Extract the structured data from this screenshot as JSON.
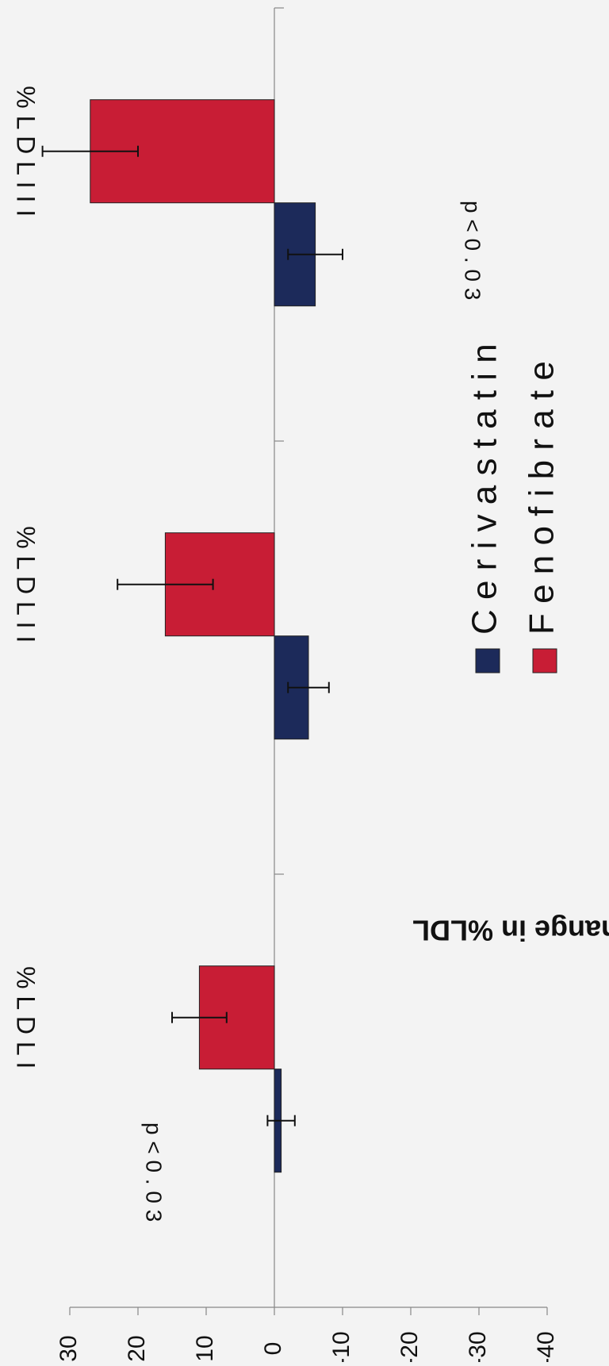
{
  "chart_data": {
    "type": "bar",
    "orientation": "rotated-90-clockwise",
    "ylabel": "Absolute Change in %LDL",
    "ylim": [
      -40,
      30
    ],
    "y_ticks": [
      "30",
      "20",
      "10",
      "0",
      "-10",
      "-20",
      "-30",
      "-40"
    ],
    "y_tick_values": [
      30,
      20,
      10,
      0,
      -10,
      -20,
      -30,
      -40
    ],
    "categories": [
      "% L D L I",
      "% L D L I I",
      "% L D L I I I"
    ],
    "series": [
      {
        "name": "C e r i v a s t a t i n",
        "color": "#1c2a5a",
        "values": [
          -1,
          -5,
          -6
        ],
        "errors": [
          2,
          3,
          4
        ]
      },
      {
        "name": "F e n o f i b r a t e",
        "color": "#c81d35",
        "values": [
          11,
          16,
          27
        ],
        "errors": [
          4,
          7,
          7
        ]
      }
    ],
    "annotations": [
      {
        "text": "p < 0 . 0 3",
        "category": 0
      },
      {
        "text": "p < 0 . 0 3",
        "category": 2
      }
    ],
    "legend": "bottom",
    "grid": false
  }
}
